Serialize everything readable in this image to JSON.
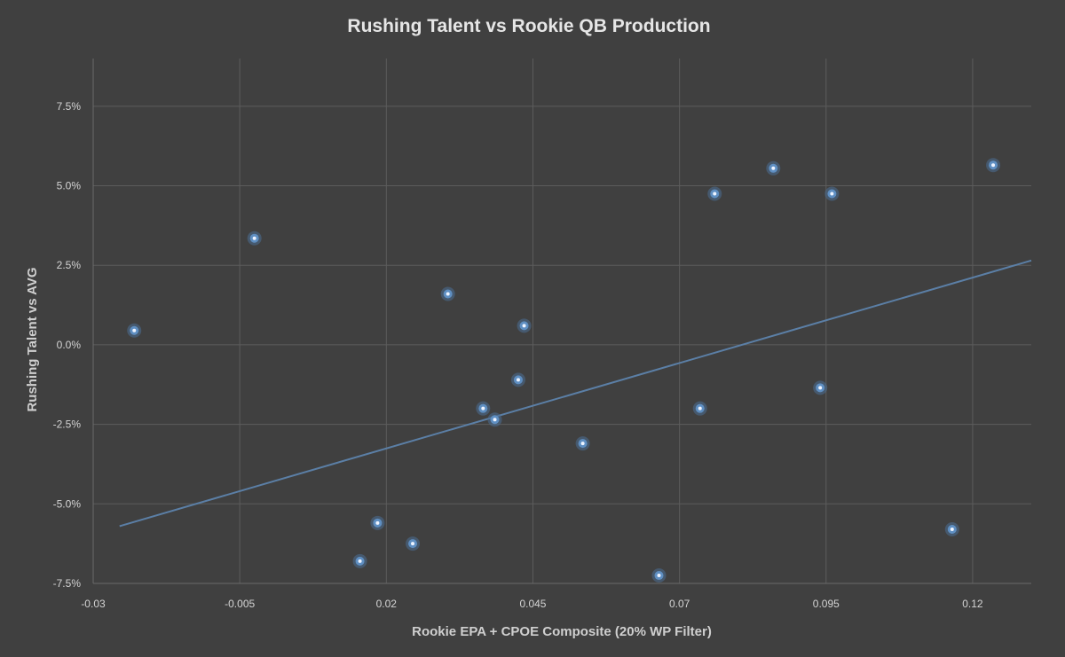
{
  "chart_data": {
    "type": "scatter",
    "title": "Rushing Talent vs Rookie QB Production",
    "xlabel": "Rookie EPA + CPOE Composite (20% WP Filter)",
    "ylabel": "Rushing Talent vs AVG",
    "xlim": [
      -0.03,
      0.13
    ],
    "ylim": [
      -0.075,
      0.09
    ],
    "x_ticks": [
      -0.03,
      -0.005,
      0.02,
      0.045,
      0.07,
      0.095,
      0.12
    ],
    "x_tick_labels": [
      "-0.03",
      "-0.005",
      "0.02",
      "0.045",
      "0.07",
      "0.095",
      "0.12"
    ],
    "y_ticks": [
      -0.075,
      -0.05,
      -0.025,
      0.0,
      0.025,
      0.05,
      0.075
    ],
    "y_tick_labels": [
      "-7.5%",
      "-5.0%",
      "-2.5%",
      "0.0%",
      "2.5%",
      "5.0%",
      "7.5%"
    ],
    "grid": true,
    "legend": "none",
    "series": [
      {
        "points": [
          {
            "x": -0.023,
            "y": 0.0045
          },
          {
            "x": -0.0025,
            "y": 0.0335
          },
          {
            "x": 0.0155,
            "y": -0.068
          },
          {
            "x": 0.0185,
            "y": -0.056
          },
          {
            "x": 0.0245,
            "y": -0.0625
          },
          {
            "x": 0.0305,
            "y": 0.016
          },
          {
            "x": 0.0365,
            "y": -0.02
          },
          {
            "x": 0.0385,
            "y": -0.0235
          },
          {
            "x": 0.0425,
            "y": -0.011
          },
          {
            "x": 0.0435,
            "y": 0.006
          },
          {
            "x": 0.0535,
            "y": -0.031
          },
          {
            "x": 0.0665,
            "y": -0.0725
          },
          {
            "x": 0.0735,
            "y": -0.02
          },
          {
            "x": 0.076,
            "y": 0.0475
          },
          {
            "x": 0.086,
            "y": 0.0555
          },
          {
            "x": 0.094,
            "y": -0.0135
          },
          {
            "x": 0.096,
            "y": 0.0475
          },
          {
            "x": 0.1165,
            "y": -0.058
          },
          {
            "x": 0.1235,
            "y": 0.0565
          }
        ],
        "color": "#5f8fc2"
      }
    ],
    "trendline": {
      "type": "linear",
      "x_start": -0.0255,
      "y_start": -0.057,
      "x_end": 0.13,
      "y_end": 0.0265,
      "color": "#5b7fa6"
    }
  }
}
